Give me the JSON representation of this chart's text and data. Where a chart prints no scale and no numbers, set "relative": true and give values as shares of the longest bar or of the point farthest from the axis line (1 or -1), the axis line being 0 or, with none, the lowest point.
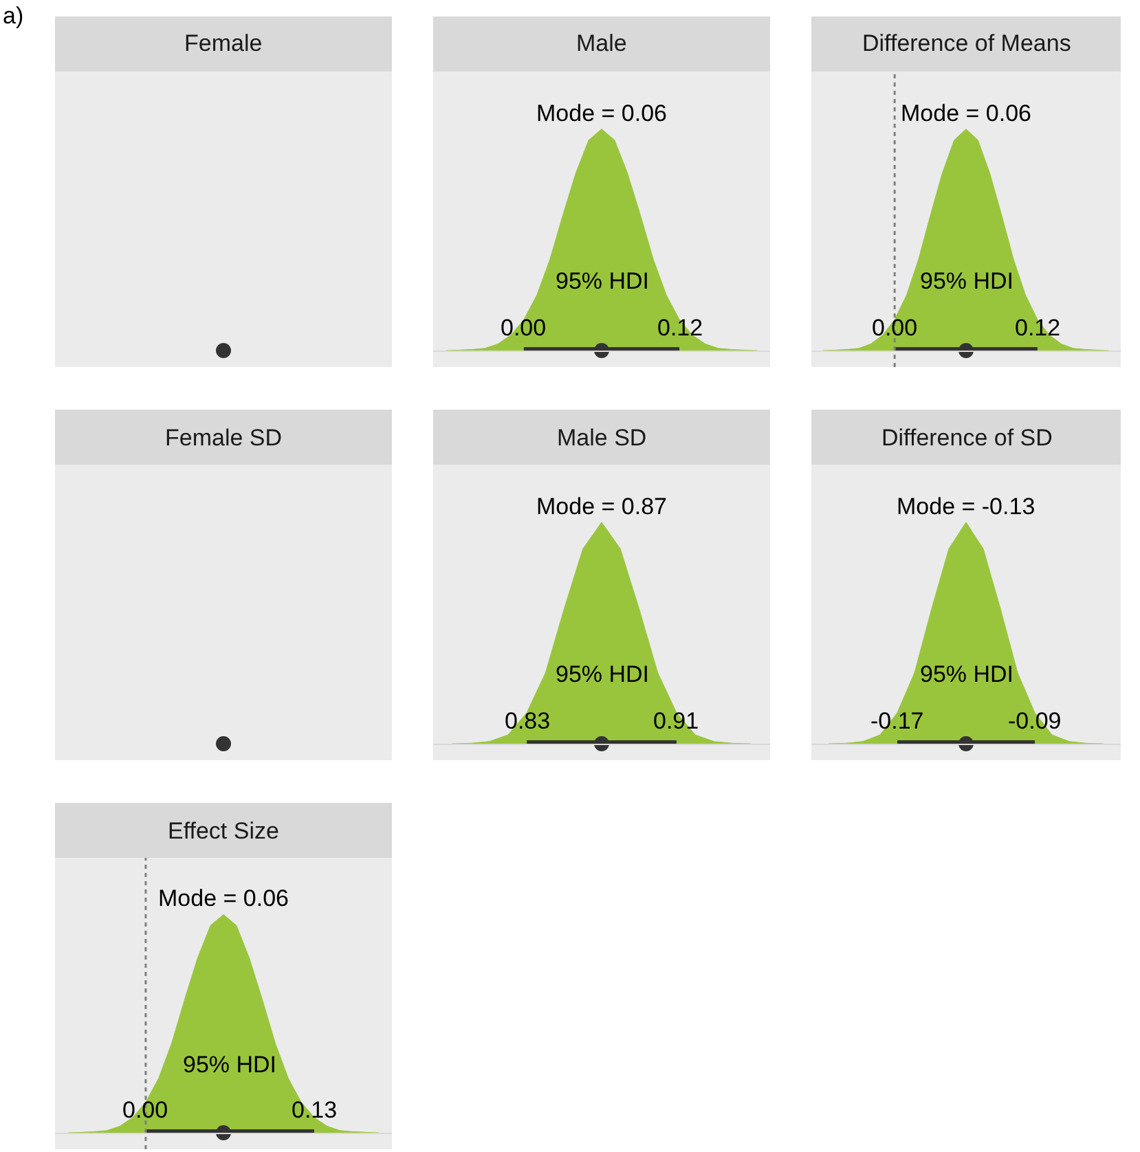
{
  "chart_data": [
    {
      "type": "other",
      "title": "Female",
      "annotations": [
        "a)"
      ]
    },
    {
      "type": "area",
      "title": "Male",
      "relative": true,
      "xlim": [
        -0.07,
        0.19
      ],
      "xticks": [
        {
          "value": 0,
          "label": "0.00"
        },
        {
          "value": 0.12,
          "label": "0.12"
        }
      ],
      "annotations": [
        {
          "text": "Mode = 0.06",
          "x": 0.06,
          "y": 1
        },
        "95% HDI"
      ],
      "series": [
        {
          "color": "#99c53c",
          "x": [
            -0.06,
            -0.05,
            -0.04,
            -0.03,
            -0.02,
            -0.01,
            0,
            0.01,
            0.02,
            0.03,
            0.04,
            0.05,
            0.06,
            0.07,
            0.08,
            0.09,
            0.1,
            0.11,
            0.12,
            0.13,
            0.14,
            0.15,
            0.16,
            0.17,
            0.18
          ],
          "values": [
            0,
            0.002,
            0.005,
            0.01,
            0.03,
            0.07,
            0.14,
            0.25,
            0.41,
            0.61,
            0.8,
            0.95,
            1,
            0.95,
            0.8,
            0.61,
            0.41,
            0.25,
            0.14,
            0.07,
            0.03,
            0.01,
            0.005,
            0.002,
            0
          ]
        },
        {
          "type": "scatter",
          "color": "#333333",
          "marker": "circle",
          "x": [
            0.06
          ],
          "values": [
            0
          ],
          "xerrors": [
            [
              0,
              0.12
            ]
          ]
        }
      ]
    },
    {
      "type": "area",
      "title": "Difference of Means",
      "relative": true,
      "xlim": [
        -0.07,
        0.19
      ],
      "xticks": [
        {
          "value": 0,
          "label": "0.00"
        },
        {
          "value": 0.12,
          "label": "0.12"
        }
      ],
      "annotations": [
        {
          "text": "Mode = 0.06",
          "x": 0.06,
          "y": 1
        },
        "95% HDI"
      ],
      "ref_lines": [
        {
          "axis": "x",
          "value": 0,
          "color": "#808080",
          "line_style": "dotted"
        }
      ],
      "series": [
        {
          "color": "#99c53c",
          "x": [
            -0.06,
            -0.05,
            -0.04,
            -0.03,
            -0.02,
            -0.01,
            0,
            0.01,
            0.02,
            0.03,
            0.04,
            0.05,
            0.06,
            0.07,
            0.08,
            0.09,
            0.1,
            0.11,
            0.12,
            0.13,
            0.14,
            0.15,
            0.16,
            0.17,
            0.18
          ],
          "values": [
            0,
            0.002,
            0.005,
            0.01,
            0.03,
            0.07,
            0.14,
            0.25,
            0.41,
            0.61,
            0.8,
            0.95,
            1,
            0.95,
            0.8,
            0.61,
            0.41,
            0.25,
            0.14,
            0.07,
            0.03,
            0.01,
            0.005,
            0.002,
            0
          ]
        },
        {
          "type": "scatter",
          "color": "#333333",
          "marker": "circle",
          "x": [
            0.06
          ],
          "values": [
            0
          ],
          "xerrors": [
            [
              0,
              0.12
            ]
          ]
        }
      ]
    },
    {
      "type": "other",
      "title": "Female SD"
    },
    {
      "type": "area",
      "title": "Male SD",
      "relative": true,
      "xlim": [
        0.78,
        0.96
      ],
      "xticks": [
        {
          "value": 0.83,
          "label": "0.83"
        },
        {
          "value": 0.91,
          "label": "0.91"
        }
      ],
      "annotations": [
        {
          "text": "Mode = 0.87",
          "x": 0.87,
          "y": 1
        },
        "95% HDI"
      ],
      "series": [
        {
          "color": "#99c53c",
          "x": [
            0.79,
            0.8,
            0.81,
            0.82,
            0.83,
            0.84,
            0.85,
            0.86,
            0.87,
            0.88,
            0.89,
            0.9,
            0.91,
            0.92,
            0.93,
            0.94,
            0.95
          ],
          "values": [
            0,
            0.002,
            0.01,
            0.04,
            0.14,
            0.32,
            0.61,
            0.88,
            1,
            0.88,
            0.61,
            0.32,
            0.14,
            0.04,
            0.01,
            0.002,
            0
          ]
        },
        {
          "type": "scatter",
          "color": "#333333",
          "marker": "circle",
          "x": [
            0.87
          ],
          "values": [
            0
          ],
          "xerrors": [
            [
              0.83,
              0.91
            ]
          ]
        }
      ]
    },
    {
      "type": "area",
      "title": "Difference of SD",
      "relative": true,
      "xlim": [
        -0.22,
        -0.04
      ],
      "xticks": [
        {
          "value": -0.17,
          "label": "-0.17"
        },
        {
          "value": -0.09,
          "label": "-0.09"
        }
      ],
      "annotations": [
        {
          "text": "Mode = -0.13",
          "x": -0.13,
          "y": 1
        },
        "95% HDI"
      ],
      "series": [
        {
          "color": "#99c53c",
          "x": [
            -0.21,
            -0.2,
            -0.19,
            -0.18,
            -0.17,
            -0.16,
            -0.15,
            -0.14,
            -0.13,
            -0.12,
            -0.11,
            -0.1,
            -0.09,
            -0.08,
            -0.07,
            -0.06,
            -0.05
          ],
          "values": [
            0,
            0.002,
            0.01,
            0.04,
            0.14,
            0.32,
            0.61,
            0.88,
            1,
            0.88,
            0.61,
            0.32,
            0.14,
            0.04,
            0.01,
            0.002,
            0
          ]
        },
        {
          "type": "scatter",
          "color": "#333333",
          "marker": "circle",
          "x": [
            -0.13
          ],
          "values": [
            0
          ],
          "xerrors": [
            [
              -0.17,
              -0.09
            ]
          ]
        }
      ]
    },
    {
      "type": "area",
      "title": "Effect Size",
      "relative": true,
      "xlim": [
        -0.07,
        0.19
      ],
      "xticks": [
        {
          "value": 0,
          "label": "0.00"
        },
        {
          "value": 0.13,
          "label": "0.13"
        }
      ],
      "annotations": [
        {
          "text": "Mode = 0.06",
          "x": 0.06,
          "y": 1
        },
        "95% HDI"
      ],
      "ref_lines": [
        {
          "axis": "x",
          "value": 0,
          "color": "#808080",
          "line_style": "dotted"
        }
      ],
      "series": [
        {
          "color": "#99c53c",
          "x": [
            -0.06,
            -0.05,
            -0.04,
            -0.03,
            -0.02,
            -0.01,
            0,
            0.01,
            0.02,
            0.03,
            0.04,
            0.05,
            0.06,
            0.07,
            0.08,
            0.09,
            0.1,
            0.11,
            0.12,
            0.13,
            0.14,
            0.15,
            0.16,
            0.17,
            0.18
          ],
          "values": [
            0,
            0.002,
            0.005,
            0.01,
            0.03,
            0.07,
            0.14,
            0.25,
            0.41,
            0.61,
            0.8,
            0.95,
            1,
            0.95,
            0.8,
            0.61,
            0.41,
            0.25,
            0.14,
            0.07,
            0.03,
            0.01,
            0.005,
            0.002,
            0
          ]
        },
        {
          "type": "scatter",
          "color": "#333333",
          "marker": "circle",
          "x": [
            0.06
          ],
          "values": [
            0
          ],
          "xerrors": [
            [
              0,
              0.13
            ]
          ]
        }
      ]
    }
  ]
}
